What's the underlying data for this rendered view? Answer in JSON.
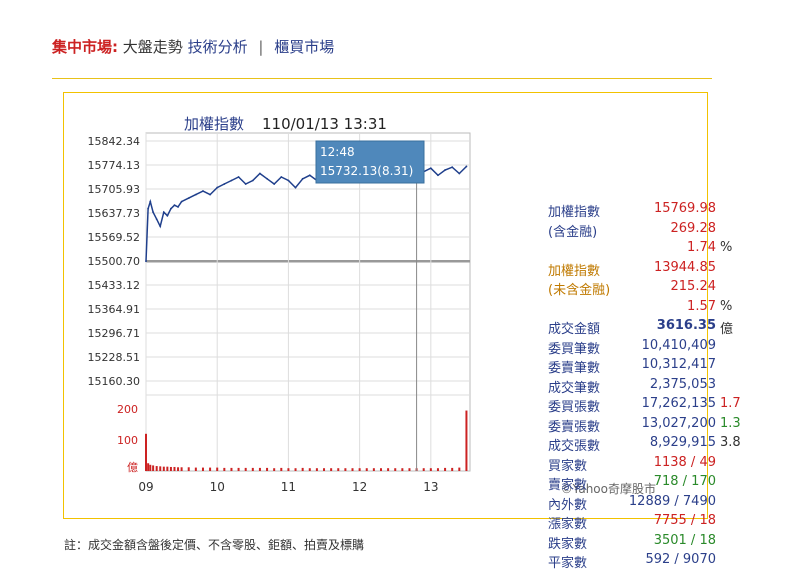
{
  "header": {
    "market_label": "集中市場:",
    "tab_trend": "大盤走勢",
    "tab_analysis": "技術分析",
    "separator": "|",
    "tab_otc": "櫃買市場"
  },
  "colors": {
    "accent_yellow": "#f2c200",
    "red": "#cc2222",
    "green": "#2a8a2a",
    "navy": "#2b3f8a",
    "line": "#1f3f8c"
  },
  "chart_data": {
    "type": "line",
    "title": "加權指數",
    "datetime": "110/01/13 13:31",
    "y_ticks": [
      "15842.34",
      "15774.13",
      "15705.93",
      "15637.73",
      "15569.52",
      "15500.70",
      "15433.12",
      "15364.91",
      "15296.71",
      "15228.51",
      "15160.30"
    ],
    "ylim": [
      15160.3,
      15842.34
    ],
    "reference": 15500.7,
    "x_ticks": [
      "09",
      "10",
      "11",
      "12",
      "13"
    ],
    "volume_ticks": [
      "200",
      "100",
      "億"
    ],
    "volume_ylim": [
      0,
      200
    ],
    "series": [
      {
        "x": [
          9.0,
          9.03,
          9.06,
          9.1,
          9.15,
          9.2,
          9.25,
          9.3,
          9.35,
          9.4,
          9.45,
          9.5,
          9.6,
          9.7,
          9.8,
          9.9,
          10.0,
          10.1,
          10.2,
          10.3,
          10.4,
          10.5,
          10.6,
          10.7,
          10.8,
          10.9,
          11.0,
          11.1,
          11.2,
          11.3,
          11.4,
          11.5,
          11.6,
          11.7,
          11.8,
          11.9,
          12.0,
          12.1,
          12.2,
          12.3,
          12.4,
          12.5,
          12.6,
          12.7,
          12.8,
          12.9,
          13.0,
          13.1,
          13.2,
          13.3,
          13.4,
          13.5
        ],
        "y": [
          15500.7,
          15650,
          15670,
          15640,
          15620,
          15600,
          15640,
          15630,
          15650,
          15660,
          15655,
          15670,
          15680,
          15690,
          15700,
          15690,
          15710,
          15720,
          15730,
          15740,
          15720,
          15730,
          15750,
          15735,
          15720,
          15740,
          15730,
          15710,
          15735,
          15745,
          15730,
          15755,
          15750,
          15760,
          15748,
          15755,
          15760,
          15745,
          15758,
          15750,
          15740,
          15750,
          15730,
          15745,
          15732.13,
          15755,
          15765,
          15745,
          15760,
          15768,
          15750,
          15769.98
        ]
      }
    ],
    "volume": [
      120,
      25,
      20,
      18,
      16,
      15,
      14,
      14,
      13,
      13,
      12,
      12,
      12,
      11,
      11,
      11,
      11,
      10,
      10,
      10,
      10,
      10,
      10,
      10,
      9,
      10,
      9,
      9,
      10,
      9,
      9,
      9,
      9,
      9,
      9,
      9,
      9,
      9,
      9,
      9,
      9,
      9,
      9,
      9,
      9,
      9,
      9,
      9,
      10,
      10,
      11,
      195
    ],
    "tooltip": {
      "time": "12:48",
      "value": "15732.13(8.31)"
    },
    "watermark": "©Yahoo奇摩股市"
  },
  "stats": [
    {
      "label": "加權指數",
      "value": "15769.98",
      "value_color": "#cc2222",
      "label_color": "#2b3f8a",
      "suffix": ""
    },
    {
      "label": "(含金融)",
      "value": "269.28",
      "value_color": "#cc2222",
      "label_color": "#2b3f8a",
      "suffix": ""
    },
    {
      "label": "",
      "value": "1.74",
      "value_color": "#cc2222",
      "label_color": "#2b3f8a",
      "suffix": "%"
    },
    {
      "label": "加權指數",
      "value": "13944.85",
      "value_color": "#cc2222",
      "label_color": "#c07a00",
      "suffix": ""
    },
    {
      "label": "(未含金融)",
      "value": "215.24",
      "value_color": "#cc2222",
      "label_color": "#c07a00",
      "suffix": ""
    },
    {
      "label": "",
      "value": "1.57",
      "value_color": "#cc2222",
      "label_color": "#2b3f8a",
      "suffix": "%"
    },
    {
      "label": "成交金額",
      "value": "3616.35",
      "value_color": "#2b3f8a",
      "label_color": "#2b3f8a",
      "suffix": "億",
      "bold": true
    },
    {
      "label": "委買筆數",
      "value": "10,410,409",
      "value_color": "#2b3f8a",
      "label_color": "#2b3f8a",
      "suffix": ""
    },
    {
      "label": "委賣筆數",
      "value": "10,312,417",
      "value_color": "#2b3f8a",
      "label_color": "#2b3f8a",
      "suffix": ""
    },
    {
      "label": "成交筆數",
      "value": "2,375,053",
      "value_color": "#2b3f8a",
      "label_color": "#2b3f8a",
      "suffix": ""
    },
    {
      "label": "委買張數",
      "value": "17,262,135",
      "value_color": "#2b3f8a",
      "label_color": "#2b3f8a",
      "suffix": "1.7",
      "suffix_color": "#cc2222"
    },
    {
      "label": "委賣張數",
      "value": "13,027,200",
      "value_color": "#2b3f8a",
      "label_color": "#2b3f8a",
      "suffix": "1.3",
      "suffix_color": "#2a8a2a"
    },
    {
      "label": "成交張數",
      "value": "8,929,915",
      "value_color": "#2b3f8a",
      "label_color": "#2b3f8a",
      "suffix": "3.8",
      "suffix_color": "#333333"
    },
    {
      "label": "買家數",
      "value": "1138 / 49",
      "value_color": "#cc2222",
      "label_color": "#2b3f8a",
      "suffix": ""
    },
    {
      "label": "賣家數",
      "value": "718 / 170",
      "value_color": "#2a8a2a",
      "label_color": "#2b3f8a",
      "suffix": ""
    },
    {
      "label": "內外數",
      "value": "12889 / 7490",
      "value_color": "#2b3f8a",
      "label_color": "#2b3f8a",
      "suffix": ""
    },
    {
      "label": "漲家數",
      "value": "7755 / 18",
      "value_color": "#cc2222",
      "label_color": "#2b3f8a",
      "suffix": ""
    },
    {
      "label": "跌家數",
      "value": "3501 / 18",
      "value_color": "#2a8a2a",
      "label_color": "#2b3f8a",
      "suffix": ""
    },
    {
      "label": "平家數",
      "value": "592 / 9070",
      "value_color": "#2b3f8a",
      "label_color": "#2b3f8a",
      "suffix": ""
    }
  ],
  "footnote": "註：成交金額含盤後定價、不含零股、鉅額、拍賣及標購"
}
